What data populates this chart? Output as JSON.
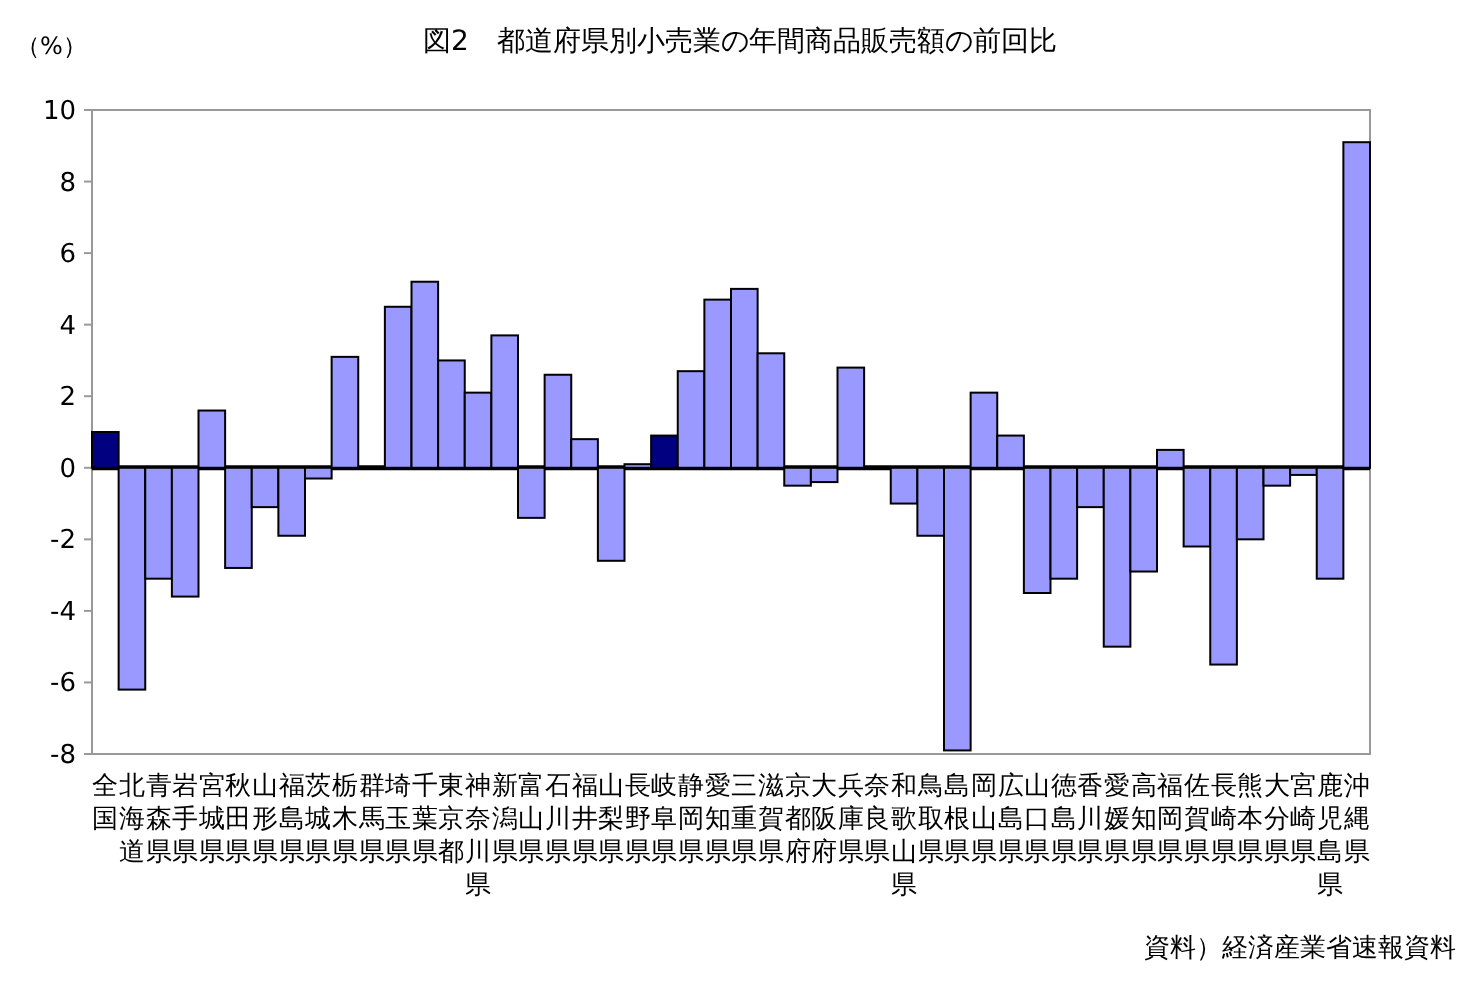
{
  "chart_data": {
    "type": "bar",
    "title": "図2　都道府県別小売業の年間商品販売額の前回比",
    "ylabel": "（%）",
    "annotations": [
      "資料）経済産業省速報資料"
    ],
    "categories": [
      "全国",
      "北海道",
      "青森県",
      "岩手県",
      "宮城県",
      "秋田県",
      "山形県",
      "福島県",
      "茨城県",
      "栃木県",
      "群馬県",
      "埼玉県",
      "千葉県",
      "東京都",
      "神奈川県",
      "新潟県",
      "富山県",
      "石川県",
      "福井県",
      "山梨県",
      "長野県",
      "岐阜県",
      "静岡県",
      "愛知県",
      "三重県",
      "滋賀県",
      "京都府",
      "大阪府",
      "兵庫県",
      "奈良県",
      "和歌山県",
      "鳥取県",
      "島根県",
      "岡山県",
      "広島県",
      "山口県",
      "徳島県",
      "香川県",
      "愛媛県",
      "高知県",
      "福岡県",
      "佐賀県",
      "長崎県",
      "熊本県",
      "大分県",
      "宮崎県",
      "鹿児島県",
      "沖縄県"
    ],
    "values": [
      1.0,
      -6.2,
      -3.1,
      -3.6,
      1.6,
      -2.8,
      -1.1,
      -1.9,
      -0.3,
      3.1,
      0.0,
      4.5,
      5.2,
      3.0,
      2.1,
      3.7,
      -1.4,
      2.6,
      0.8,
      -2.6,
      0.1,
      0.9,
      2.7,
      4.7,
      5.0,
      3.2,
      -0.5,
      -0.4,
      2.8,
      0.0,
      -1.0,
      -1.9,
      -7.9,
      2.1,
      0.9,
      -3.5,
      -3.1,
      -1.1,
      -5.0,
      -2.9,
      0.5,
      -2.2,
      -5.5,
      -2.0,
      -0.5,
      -0.2,
      -3.1,
      9.1
    ],
    "colors": [
      "#000080",
      "#9999ff",
      "#9999ff",
      "#9999ff",
      "#9999ff",
      "#9999ff",
      "#9999ff",
      "#9999ff",
      "#9999ff",
      "#9999ff",
      "#9999ff",
      "#9999ff",
      "#9999ff",
      "#9999ff",
      "#9999ff",
      "#9999ff",
      "#9999ff",
      "#9999ff",
      "#9999ff",
      "#9999ff",
      "#9999ff",
      "#000080",
      "#9999ff",
      "#9999ff",
      "#9999ff",
      "#9999ff",
      "#9999ff",
      "#9999ff",
      "#9999ff",
      "#9999ff",
      "#9999ff",
      "#9999ff",
      "#9999ff",
      "#9999ff",
      "#9999ff",
      "#9999ff",
      "#9999ff",
      "#9999ff",
      "#9999ff",
      "#9999ff",
      "#9999ff",
      "#9999ff",
      "#9999ff",
      "#9999ff",
      "#9999ff",
      "#9999ff",
      "#9999ff",
      "#9999ff"
    ],
    "ylim": [
      -8,
      10
    ],
    "yticks": [
      -8,
      -6,
      -4,
      -2,
      0,
      2,
      4,
      6,
      8,
      10
    ]
  }
}
